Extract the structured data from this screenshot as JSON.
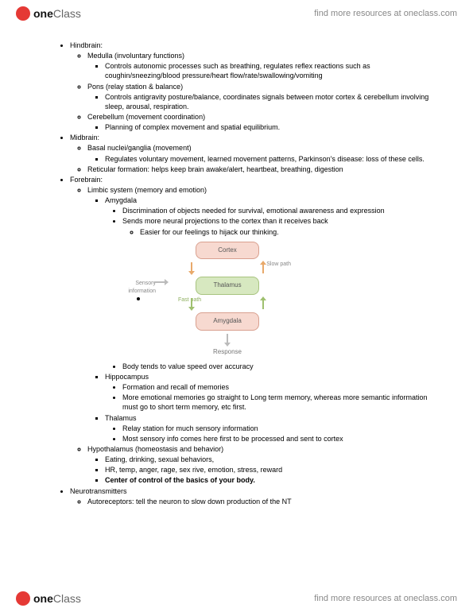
{
  "brand": {
    "part1": "one",
    "part2": "Class"
  },
  "tagline": "find more resources at oneclass.com",
  "sections": {
    "hindbrain": {
      "title": "Hindbrain:",
      "medulla": {
        "title": "Medulla (involuntary functions)",
        "b1": "Controls autonomic processes such as breathing, regulates reflex reactions such as coughin/sneezing/blood pressure/heart flow/rate/swallowing/vomiting"
      },
      "pons": {
        "title": "Pons (relay station & balance)",
        "b1": "Controls antigravity posture/balance, coordinates signals between motor cortex & cerebellum involving sleep, arousal, respiration."
      },
      "cerebellum": {
        "title": "Cerebellum (movement coordination)",
        "b1": "Planning of complex movement and spatial equilibrium."
      }
    },
    "midbrain": {
      "title": "Midbrain:",
      "basal": {
        "title": "Basal nuclei/ganglia (movement)",
        "b1": "Regulates voluntary movement, learned movement patterns, Parkinson's disease: loss of these cells."
      },
      "reticular": "Reticular formation: helps keep brain awake/alert, heartbeat, breathing, digestion"
    },
    "forebrain": {
      "title": "Forebrain:",
      "limbic": {
        "title": "Limbic system (memory and emotion)",
        "amygdala": {
          "title": "Amygdala",
          "b1": "Discrimination of objects needed for survival, emotional awareness and expression",
          "b2": "Sends more neural projections to the cortex than it receives back",
          "b2a": "Easier for our feelings to hijack our thinking.",
          "b3": "Body tends to value speed over accuracy"
        },
        "hippocampus": {
          "title": "Hippocampus",
          "b1": "Formation and recall of memories",
          "b2": "More emotional memories go straight to Long term memory, whereas more semantic information must go to short term memory, etc first."
        },
        "thalamus": {
          "title": "Thalamus",
          "b1": "Relay station for much sensory information",
          "b2": "Most sensory info comes here first to be processed and sent to cortex"
        }
      },
      "hypothalamus": {
        "title": "Hypothalamus (homeostasis and behavior)",
        "b1": "Eating, drinking, sexual behaviors,",
        "b2": "HR, temp, anger, rage, sex rive, emotion, stress, reward",
        "b3": "Center of control of the basics of your body."
      }
    },
    "neuro": {
      "title": "Neurotransmitters",
      "b1": "Autoreceptors: tell the neuron to slow down production of the NT"
    }
  },
  "diagram": {
    "cortex": "Cortex",
    "thalamus": "Thalamus",
    "amygdala": "Amygdala",
    "response": "Response",
    "sensory": "Sensory information",
    "slow": "Slow path",
    "fast": "Fast path",
    "colors": {
      "cortex_bg": "#f7d9d0",
      "thalamus_bg": "#d7e8c0",
      "amygdala_bg": "#f7d9d0",
      "slow_arrow": "#e8a96b",
      "fast_arrow": "#9fc06f",
      "gray_arrow": "#bbbbbb"
    }
  }
}
